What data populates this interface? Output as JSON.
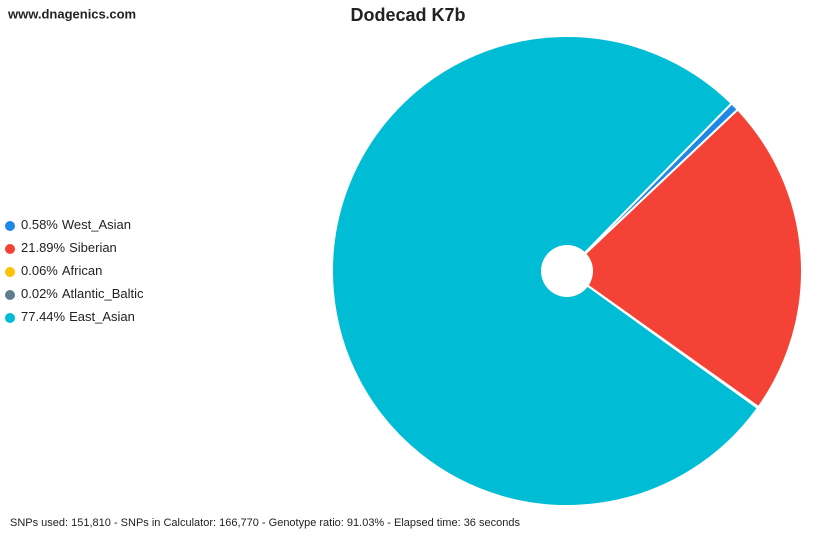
{
  "chart_data": {
    "type": "pie",
    "title": "Dodecad K7b",
    "source": "www.dnagenics.com",
    "footer": "SNPs used: 151,810 - SNPs in Calculator: 166,770 - Genotype ratio: 91.03% - Elapsed time: 36 seconds",
    "categories": [
      "West_Asian",
      "Siberian",
      "African",
      "Atlantic_Baltic",
      "East_Asian"
    ],
    "values": [
      0.58,
      21.89,
      0.06,
      0.02,
      77.44
    ],
    "value_labels": [
      "0.58%",
      "21.89%",
      "0.06%",
      "0.02%",
      "77.44%"
    ],
    "colors": [
      "#1e88e5",
      "#f44336",
      "#ffc107",
      "#607d8b",
      "#00bcd4"
    ],
    "legend": "left"
  }
}
